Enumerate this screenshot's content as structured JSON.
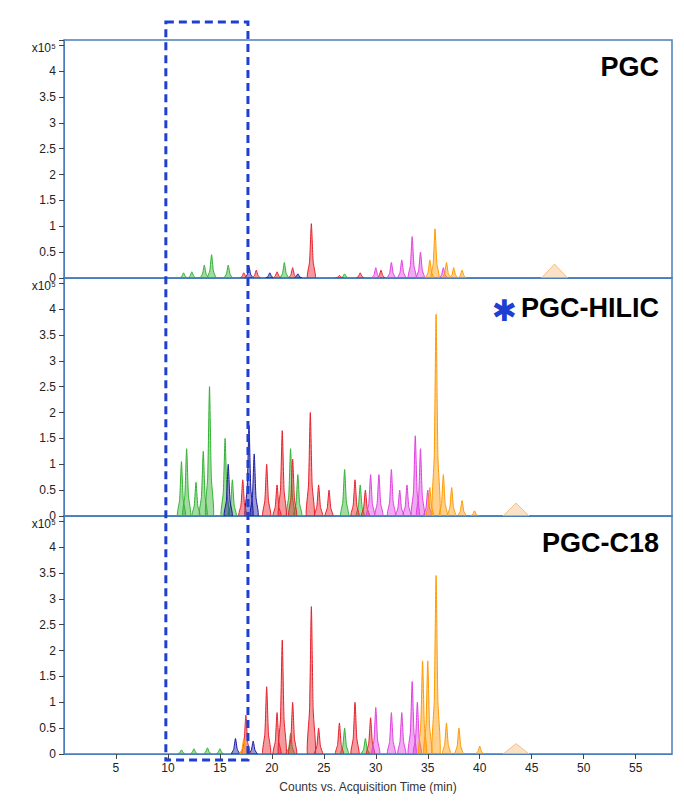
{
  "chart_data": [
    {
      "type": "peaks",
      "title": "PGC",
      "ylabel": "x10⁵",
      "xlim": [
        0,
        58.5
      ],
      "xticks": [
        5,
        10,
        15,
        20,
        25,
        30,
        35,
        40,
        45,
        50,
        55
      ],
      "ylim": [
        0,
        4.6
      ],
      "yticks": [
        0,
        0.5,
        1,
        1.5,
        2,
        2.5,
        3,
        3.5,
        4
      ],
      "grid": false,
      "tick_labels": "y",
      "series": [
        {
          "color": "#33b233",
          "marker": "peak",
          "x": [
            11.5,
            12.3,
            13.5,
            14.2,
            15.8,
            21.2,
            27
          ],
          "values": [
            0.1,
            0.12,
            0.25,
            0.45,
            0.25,
            0.3,
            0.08
          ]
        },
        {
          "color": "#1a1aa0",
          "marker": "peak",
          "x": [
            17.8,
            19.8,
            22.5
          ],
          "values": [
            0.22,
            0.1,
            0.08
          ]
        },
        {
          "color": "#e8202a",
          "marker": "peak",
          "x": [
            17.3,
            18.5,
            20.5,
            22,
            23.8,
            26.5,
            28.5,
            30.5
          ],
          "values": [
            0.1,
            0.15,
            0.12,
            0.2,
            1.05,
            0.05,
            0.1,
            0.15
          ]
        },
        {
          "color": "#e040e0",
          "marker": "peak",
          "x": [
            30,
            31.5,
            32.5,
            33.5,
            34.3,
            36.5
          ],
          "values": [
            0.2,
            0.3,
            0.35,
            0.8,
            0.5,
            0.2
          ]
        },
        {
          "color": "#ff9a00",
          "marker": "peak",
          "x": [
            35.2,
            35.7,
            36.8,
            37.5,
            38.3
          ],
          "values": [
            0.35,
            0.95,
            0.3,
            0.2,
            0.15
          ]
        },
        {
          "color": "#f5bf85",
          "marker": "triangle",
          "x": [
            47.2
          ],
          "values": [
            0.27
          ]
        }
      ]
    },
    {
      "type": "peaks",
      "title": "PGC-HILIC",
      "ylabel": "x10⁵",
      "annotations": [
        {
          "text": "✱"
        }
      ],
      "xlim": [
        0,
        58.5
      ],
      "xticks": [
        5,
        10,
        15,
        20,
        25,
        30,
        35,
        40,
        45,
        50,
        55
      ],
      "ylim": [
        0,
        4.6
      ],
      "yticks": [
        0,
        0.5,
        1,
        1.5,
        2,
        2.5,
        3,
        3.5,
        4
      ],
      "grid": false,
      "tick_labels": "y",
      "series": [
        {
          "color": "#33b233",
          "marker": "peak",
          "x": [
            11.3,
            11.8,
            12.7,
            13.4,
            14,
            15.5,
            16.2,
            21.8,
            22.5,
            27,
            28.5
          ],
          "values": [
            1.05,
            1.3,
            0.65,
            1.25,
            2.5,
            1.5,
            0.7,
            1.3,
            0.8,
            0.9,
            0.6
          ]
        },
        {
          "color": "#1a1aa0",
          "marker": "peak",
          "x": [
            15.8,
            17.8,
            18.3
          ],
          "values": [
            1.0,
            1.75,
            1.2
          ]
        },
        {
          "color": "#e8202a",
          "marker": "peak",
          "x": [
            17.2,
            19.5,
            20.5,
            21,
            22,
            23.7,
            24.5,
            25.5,
            28,
            29
          ],
          "values": [
            0.7,
            1.0,
            0.6,
            1.65,
            1.1,
            2.0,
            0.6,
            0.5,
            0.7,
            0.5
          ]
        },
        {
          "color": "#e040e0",
          "marker": "peak",
          "x": [
            29.5,
            30.3,
            31.5,
            32.3,
            33,
            33.8,
            34.3,
            35
          ],
          "values": [
            0.8,
            0.8,
            0.9,
            0.5,
            0.6,
            1.55,
            1.3,
            0.5
          ]
        },
        {
          "color": "#ff9a00",
          "marker": "peak",
          "x": [
            35.2,
            35.8,
            36.5,
            37.3,
            38.3,
            39.5
          ],
          "values": [
            0.55,
            3.9,
            0.8,
            0.55,
            0.3,
            0.1
          ]
        },
        {
          "color": "#f5bf85",
          "marker": "triangle",
          "x": [
            43.5
          ],
          "values": [
            0.25
          ]
        }
      ]
    },
    {
      "type": "peaks",
      "title": "PGC-C18",
      "ylabel": "x10⁵",
      "xlabel": "Counts vs. Acquisition Time (min)",
      "xlim": [
        0,
        58.5
      ],
      "xticks": [
        5,
        10,
        15,
        20,
        25,
        30,
        35,
        40,
        45,
        50,
        55
      ],
      "ylim": [
        0,
        4.6
      ],
      "yticks": [
        0,
        0.5,
        1,
        1.5,
        2,
        2.5,
        3,
        3.5,
        4
      ],
      "grid": false,
      "series": [
        {
          "color": "#33b233",
          "marker": "peak",
          "x": [
            11.3,
            12.5,
            13.8,
            15,
            21.8,
            27,
            29
          ],
          "values": [
            0.08,
            0.1,
            0.12,
            0.1,
            0.4,
            0.5,
            0.3
          ]
        },
        {
          "color": "#1a1aa0",
          "marker": "peak",
          "x": [
            16.5,
            18.2
          ],
          "values": [
            0.3,
            0.25
          ]
        },
        {
          "color": "#e8202a",
          "marker": "peak",
          "x": [
            17.5,
            19.5,
            20.5,
            21,
            22,
            23.8,
            24.5,
            26.5,
            28,
            29.5
          ],
          "values": [
            0.75,
            1.3,
            0.8,
            2.2,
            1.0,
            2.85,
            0.5,
            0.6,
            1.0,
            0.7
          ]
        },
        {
          "color": "#e040e0",
          "marker": "peak",
          "x": [
            30,
            31.5,
            32.5,
            33.5,
            34
          ],
          "values": [
            0.9,
            0.8,
            0.8,
            1.4,
            1.0
          ]
        },
        {
          "color": "#ff9a00",
          "marker": "peak",
          "x": [
            17.3,
            34.5,
            35,
            35.8,
            36.8,
            38,
            40
          ],
          "values": [
            0.3,
            1.8,
            1.8,
            3.45,
            0.6,
            0.5,
            0.15
          ]
        },
        {
          "color": "#f5bf85",
          "marker": "triangle",
          "x": [
            43.5
          ],
          "values": [
            0.2
          ]
        }
      ]
    }
  ],
  "highlight_xrange": [
    9.8,
    17.7
  ]
}
